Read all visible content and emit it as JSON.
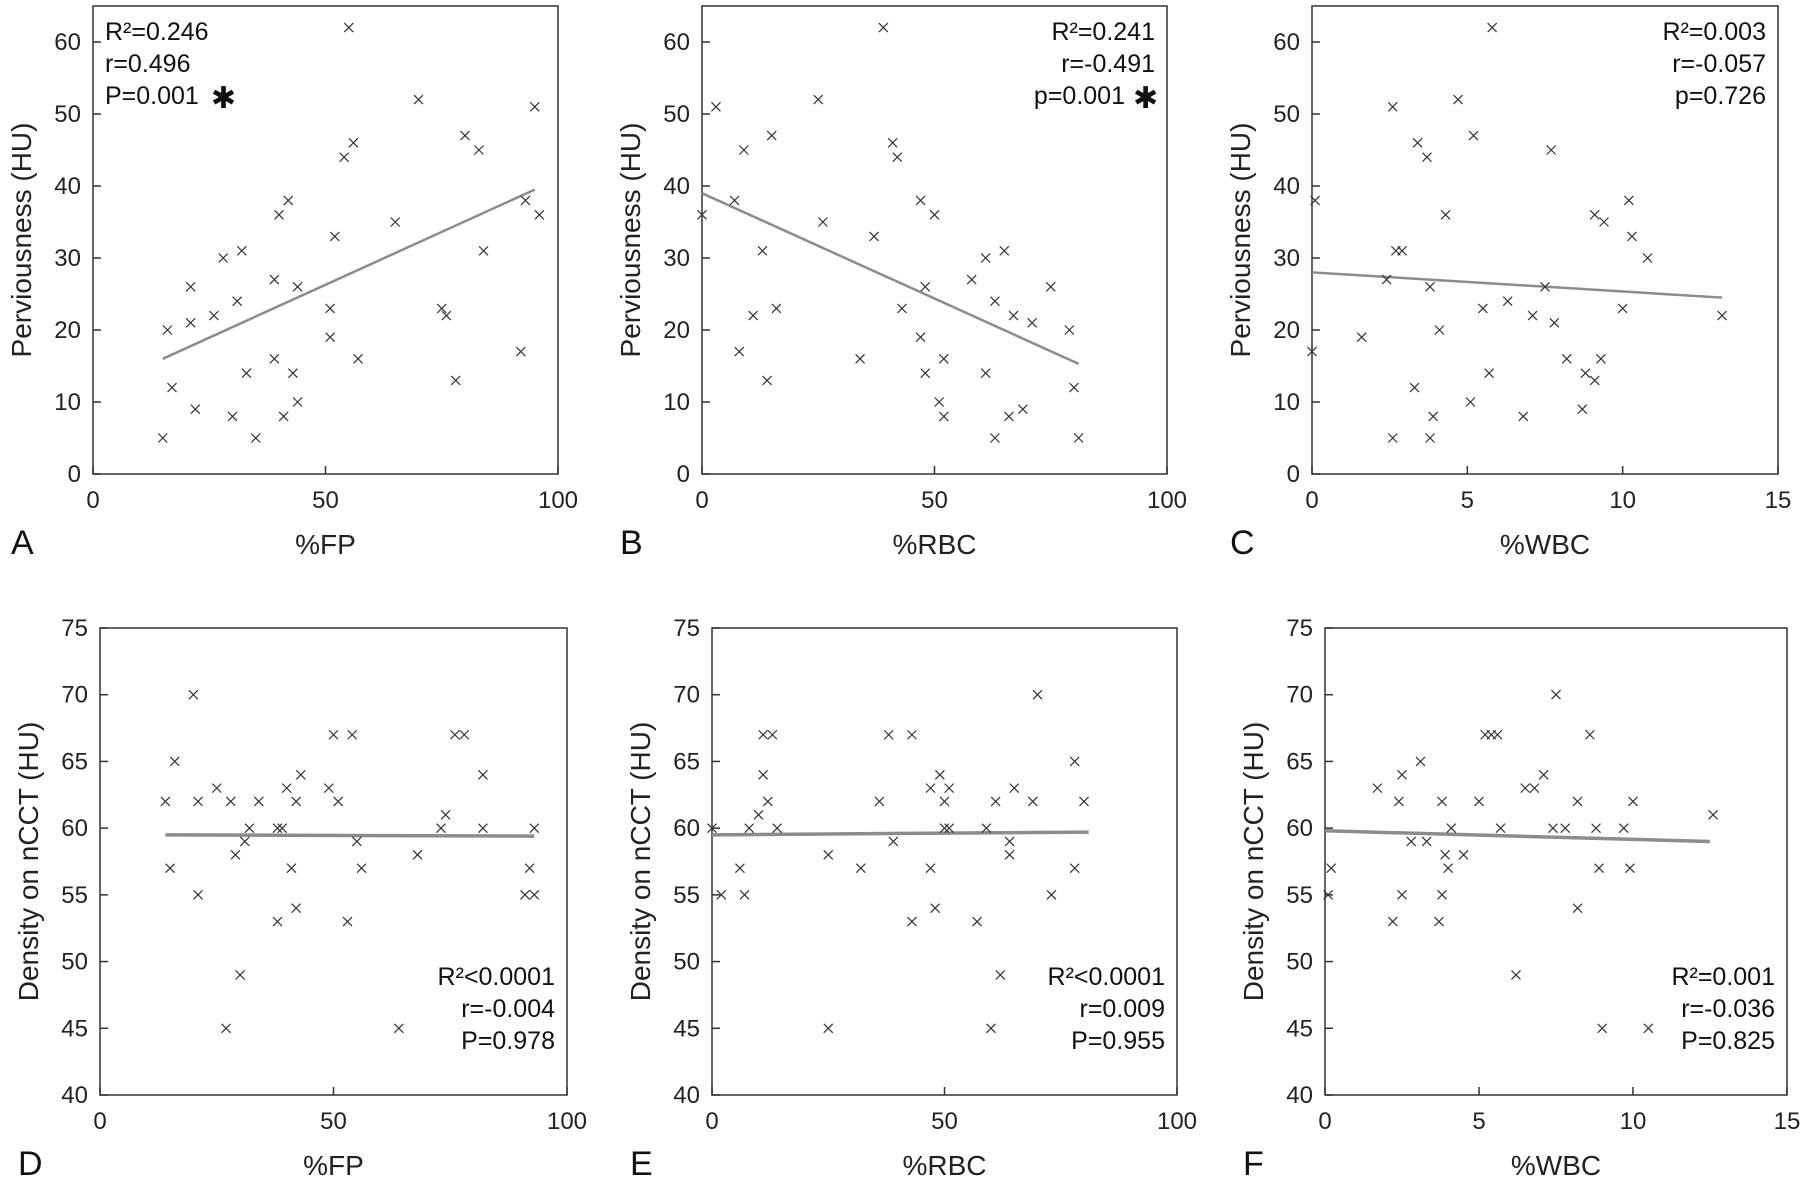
{
  "chart_data": [
    {
      "type": "scatter",
      "panel": "A",
      "xlabel": "%FP",
      "ylabel": "Perviousness (HU)",
      "xlim": [
        0,
        100
      ],
      "ylim": [
        0,
        65
      ],
      "xticks": [
        0,
        50,
        100
      ],
      "yticks": [
        0,
        10,
        20,
        30,
        40,
        50,
        60
      ],
      "stats": [
        {
          "text": "R²=0.246"
        },
        {
          "text": "r=0.496"
        },
        {
          "text": "P=0.001",
          "star": "✱"
        }
      ],
      "stats_align": "left",
      "fit": [
        [
          15,
          16
        ],
        [
          95,
          39.5
        ]
      ],
      "points": [
        [
          15,
          5
        ],
        [
          16,
          20
        ],
        [
          17,
          12
        ],
        [
          21,
          21
        ],
        [
          21,
          26
        ],
        [
          22,
          9
        ],
        [
          26,
          22
        ],
        [
          28,
          30
        ],
        [
          30,
          8
        ],
        [
          31,
          24
        ],
        [
          32,
          31
        ],
        [
          33,
          14
        ],
        [
          35,
          5
        ],
        [
          39,
          16
        ],
        [
          39,
          27
        ],
        [
          40,
          36
        ],
        [
          41,
          8
        ],
        [
          42,
          38
        ],
        [
          43,
          14
        ],
        [
          44,
          10
        ],
        [
          44,
          26
        ],
        [
          51,
          23
        ],
        [
          51,
          19
        ],
        [
          52,
          33
        ],
        [
          54,
          44
        ],
        [
          55,
          62
        ],
        [
          56,
          46
        ],
        [
          57,
          16
        ],
        [
          65,
          35
        ],
        [
          70,
          52
        ],
        [
          75,
          23
        ],
        [
          76,
          22
        ],
        [
          78,
          13
        ],
        [
          80,
          47
        ],
        [
          83,
          45
        ],
        [
          84,
          31
        ],
        [
          92,
          17
        ],
        [
          93,
          38
        ],
        [
          95,
          51
        ],
        [
          96,
          36
        ]
      ]
    },
    {
      "type": "scatter",
      "panel": "B",
      "xlabel": "%RBC",
      "ylabel": "Perviousness (HU)",
      "xlim": [
        0,
        100
      ],
      "ylim": [
        0,
        65
      ],
      "xticks": [
        0,
        50,
        100
      ],
      "yticks": [
        0,
        10,
        20,
        30,
        40,
        50,
        60
      ],
      "stats": [
        {
          "text": "R²=0.241"
        },
        {
          "text": "r=-0.491"
        },
        {
          "text": "p=0.001",
          "star": "✱"
        }
      ],
      "stats_align": "right",
      "fit": [
        [
          0,
          39
        ],
        [
          81,
          15.3
        ]
      ],
      "points": [
        [
          0,
          36
        ],
        [
          3,
          51
        ],
        [
          7,
          38
        ],
        [
          8,
          17
        ],
        [
          9,
          45
        ],
        [
          11,
          22
        ],
        [
          13,
          31
        ],
        [
          14,
          13
        ],
        [
          15,
          47
        ],
        [
          16,
          23
        ],
        [
          25,
          52
        ],
        [
          26,
          35
        ],
        [
          34,
          16
        ],
        [
          37,
          33
        ],
        [
          39,
          62
        ],
        [
          41,
          46
        ],
        [
          42,
          44
        ],
        [
          43,
          23
        ],
        [
          47,
          38
        ],
        [
          47,
          19
        ],
        [
          48,
          14
        ],
        [
          48,
          26
        ],
        [
          50,
          36
        ],
        [
          51,
          10
        ],
        [
          52,
          8
        ],
        [
          52,
          16
        ],
        [
          58,
          27
        ],
        [
          61,
          14
        ],
        [
          61,
          30
        ],
        [
          63,
          5
        ],
        [
          63,
          24
        ],
        [
          65,
          31
        ],
        [
          66,
          8
        ],
        [
          67,
          22
        ],
        [
          69,
          9
        ],
        [
          71,
          21
        ],
        [
          75,
          26
        ],
        [
          79,
          20
        ],
        [
          80,
          12
        ],
        [
          81,
          5
        ]
      ]
    },
    {
      "type": "scatter",
      "panel": "C",
      "xlabel": "%WBC",
      "ylabel": "Perviousness (HU)",
      "xlim": [
        0,
        15
      ],
      "ylim": [
        0,
        65
      ],
      "xticks": [
        0,
        5,
        10,
        15
      ],
      "yticks": [
        0,
        10,
        20,
        30,
        40,
        50,
        60
      ],
      "stats": [
        {
          "text": "R²=0.003"
        },
        {
          "text": "r=-0.057"
        },
        {
          "text": "p=0.726"
        }
      ],
      "stats_align": "right",
      "fit": [
        [
          0,
          28
        ],
        [
          13.2,
          24.5
        ]
      ],
      "points": [
        [
          0,
          17
        ],
        [
          0.1,
          38
        ],
        [
          1.6,
          19
        ],
        [
          2.4,
          27
        ],
        [
          2.6,
          51
        ],
        [
          2.6,
          5
        ],
        [
          2.7,
          31
        ],
        [
          2.9,
          31
        ],
        [
          3.3,
          12
        ],
        [
          3.4,
          46
        ],
        [
          3.7,
          44
        ],
        [
          3.8,
          26
        ],
        [
          3.8,
          5
        ],
        [
          3.9,
          8
        ],
        [
          4.1,
          20
        ],
        [
          4.3,
          36
        ],
        [
          4.7,
          52
        ],
        [
          5.1,
          10
        ],
        [
          5.2,
          47
        ],
        [
          5.5,
          23
        ],
        [
          5.7,
          14
        ],
        [
          5.8,
          62
        ],
        [
          6.3,
          24
        ],
        [
          6.8,
          8
        ],
        [
          7.1,
          22
        ],
        [
          7.5,
          26
        ],
        [
          7.7,
          45
        ],
        [
          7.8,
          21
        ],
        [
          8.2,
          16
        ],
        [
          8.7,
          9
        ],
        [
          8.8,
          14
        ],
        [
          9.1,
          13
        ],
        [
          9.1,
          36
        ],
        [
          9.3,
          16
        ],
        [
          9.4,
          35
        ],
        [
          10.0,
          23
        ],
        [
          10.2,
          38
        ],
        [
          10.3,
          33
        ],
        [
          10.8,
          30
        ],
        [
          13.2,
          22
        ]
      ]
    },
    {
      "type": "scatter",
      "panel": "D",
      "xlabel": "%FP",
      "ylabel": "Density on nCCT (HU)",
      "xlim": [
        0,
        100
      ],
      "ylim": [
        40,
        75
      ],
      "xticks": [
        0,
        50,
        100
      ],
      "yticks": [
        40,
        45,
        50,
        55,
        60,
        65,
        70,
        75
      ],
      "stats": [
        {
          "text": "R²<0.0001"
        },
        {
          "text": "r=-0.004"
        },
        {
          "text": "P=0.978"
        }
      ],
      "stats_align": "right",
      "fit": [
        [
          14,
          59.5
        ],
        [
          93,
          59.4
        ]
      ],
      "points": [
        [
          14,
          62
        ],
        [
          15,
          57
        ],
        [
          16,
          65
        ],
        [
          20,
          70
        ],
        [
          21,
          55
        ],
        [
          21,
          62
        ],
        [
          25,
          63
        ],
        [
          27,
          45
        ],
        [
          28,
          62
        ],
        [
          29,
          58
        ],
        [
          30,
          49
        ],
        [
          31,
          59
        ],
        [
          32,
          60
        ],
        [
          34,
          62
        ],
        [
          38,
          60
        ],
        [
          38,
          53
        ],
        [
          39,
          60
        ],
        [
          40,
          63
        ],
        [
          41,
          57
        ],
        [
          42,
          54
        ],
        [
          42,
          62
        ],
        [
          43,
          64
        ],
        [
          49,
          63
        ],
        [
          50,
          67
        ],
        [
          51,
          62
        ],
        [
          53,
          53
        ],
        [
          54,
          67
        ],
        [
          55,
          59
        ],
        [
          56,
          57
        ],
        [
          64,
          45
        ],
        [
          68,
          58
        ],
        [
          73,
          60
        ],
        [
          74,
          61
        ],
        [
          76,
          67
        ],
        [
          78,
          67
        ],
        [
          82,
          64
        ],
        [
          82,
          60
        ],
        [
          91,
          55
        ],
        [
          92,
          57
        ],
        [
          93,
          60
        ],
        [
          93,
          55
        ]
      ]
    },
    {
      "type": "scatter",
      "panel": "E",
      "xlabel": "%RBC",
      "ylabel": "Density on nCCT (HU)",
      "xlim": [
        0,
        100
      ],
      "ylim": [
        40,
        75
      ],
      "xticks": [
        0,
        50,
        100
      ],
      "yticks": [
        40,
        45,
        50,
        55,
        60,
        65,
        70,
        75
      ],
      "stats": [
        {
          "text": "R²<0.0001"
        },
        {
          "text": "r=0.009"
        },
        {
          "text": "P=0.955"
        }
      ],
      "stats_align": "right",
      "fit": [
        [
          0,
          59.5
        ],
        [
          81,
          59.7
        ]
      ],
      "points": [
        [
          0,
          60
        ],
        [
          2,
          55
        ],
        [
          6,
          57
        ],
        [
          7,
          55
        ],
        [
          8,
          60
        ],
        [
          10,
          61
        ],
        [
          11,
          64
        ],
        [
          11,
          67
        ],
        [
          12,
          62
        ],
        [
          13,
          67
        ],
        [
          14,
          60
        ],
        [
          25,
          58
        ],
        [
          25,
          45
        ],
        [
          32,
          57
        ],
        [
          36,
          62
        ],
        [
          38,
          67
        ],
        [
          39,
          59
        ],
        [
          43,
          67
        ],
        [
          43,
          53
        ],
        [
          47,
          57
        ],
        [
          47,
          63
        ],
        [
          48,
          54
        ],
        [
          49,
          64
        ],
        [
          50,
          60
        ],
        [
          50,
          62
        ],
        [
          51,
          63
        ],
        [
          51,
          60
        ],
        [
          57,
          53
        ],
        [
          59,
          60
        ],
        [
          60,
          45
        ],
        [
          61,
          62
        ],
        [
          62,
          49
        ],
        [
          64,
          59
        ],
        [
          64,
          58
        ],
        [
          65,
          63
        ],
        [
          69,
          62
        ],
        [
          70,
          70
        ],
        [
          73,
          55
        ],
        [
          78,
          57
        ],
        [
          78,
          65
        ],
        [
          80,
          62
        ]
      ]
    },
    {
      "type": "scatter",
      "panel": "F",
      "xlabel": "%WBC",
      "ylabel": "Density on nCCT (HU)",
      "xlim": [
        0,
        15
      ],
      "ylim": [
        40,
        75
      ],
      "xticks": [
        0,
        5,
        10,
        15
      ],
      "yticks": [
        40,
        45,
        50,
        55,
        60,
        65,
        70,
        75
      ],
      "stats": [
        {
          "text": "R²=0.001"
        },
        {
          "text": "r=-0.036"
        },
        {
          "text": "P=0.825"
        }
      ],
      "stats_align": "right",
      "fit": [
        [
          0,
          59.8
        ],
        [
          12.5,
          59
        ]
      ],
      "points": [
        [
          0.1,
          55
        ],
        [
          0.2,
          57
        ],
        [
          1.7,
          63
        ],
        [
          2.2,
          53
        ],
        [
          2.4,
          62
        ],
        [
          2.5,
          55
        ],
        [
          2.5,
          64
        ],
        [
          2.8,
          59
        ],
        [
          3.1,
          65
        ],
        [
          3.3,
          59
        ],
        [
          3.7,
          53
        ],
        [
          3.8,
          62
        ],
        [
          3.8,
          55
        ],
        [
          3.9,
          58
        ],
        [
          4.0,
          57
        ],
        [
          4.1,
          60
        ],
        [
          4.5,
          58
        ],
        [
          5.0,
          62
        ],
        [
          5.2,
          67
        ],
        [
          5.4,
          67
        ],
        [
          5.6,
          67
        ],
        [
          5.7,
          60
        ],
        [
          6.2,
          49
        ],
        [
          6.5,
          63
        ],
        [
          6.8,
          63
        ],
        [
          7.1,
          64
        ],
        [
          7.4,
          60
        ],
        [
          7.5,
          70
        ],
        [
          7.8,
          60
        ],
        [
          8.2,
          54
        ],
        [
          8.2,
          62
        ],
        [
          8.6,
          67
        ],
        [
          8.8,
          60
        ],
        [
          8.9,
          57
        ],
        [
          9.0,
          45
        ],
        [
          9.7,
          60
        ],
        [
          9.9,
          57
        ],
        [
          10.0,
          62
        ],
        [
          10.5,
          45
        ],
        [
          12.6,
          61
        ]
      ]
    }
  ]
}
